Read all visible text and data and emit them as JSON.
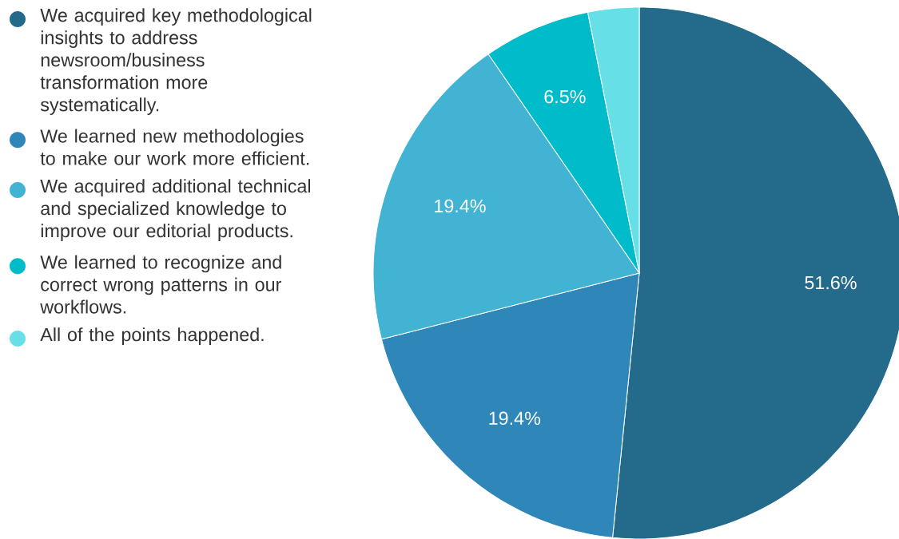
{
  "chart_data": {
    "type": "pie",
    "categories": [
      "We acquired key methodological insights to address newsroom/business transformation more systematically.",
      "We learned new methodologies to make our work more efficient.",
      "We acquired additional technical and specialized knowledge to improve our editorial products.",
      "We learned to recognize and correct wrong patterns in our workflows.",
      "All of the points happened."
    ],
    "values": [
      51.6,
      19.4,
      19.4,
      6.5,
      3.1
    ],
    "colors": [
      "#246a8a",
      "#2e86b9",
      "#43b3d3",
      "#00bcca",
      "#66e0e6"
    ],
    "value_labels": [
      "51.6%",
      "19.4%",
      "19.4%",
      "6.5%",
      null
    ],
    "legend": "left"
  }
}
